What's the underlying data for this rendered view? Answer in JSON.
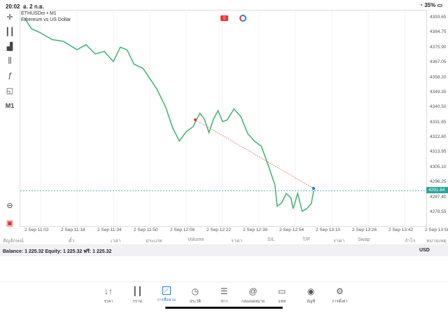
{
  "status": {
    "time": "20:02",
    "date": "อ. 2 ก.ย.",
    "battery": "35%"
  },
  "chart": {
    "symbol": "ETHUSDm • M1",
    "description": "Ethereum vs US Dollar",
    "timeframe": "M1",
    "current_price": "4291.64",
    "colors": {
      "line": "#3cb371",
      "current": "#26a69a",
      "trade_line": "#d9534f"
    }
  },
  "chart_data": {
    "type": "line",
    "y_ticks": [
      "4393.65",
      "4384.75",
      "4375.90",
      "4367.05",
      "4358.20",
      "4349.35",
      "4340.50",
      "4331.65",
      "4322.80",
      "4313.95",
      "4305.10",
      "4296.25",
      "4287.40",
      "4278.55"
    ],
    "x_ticks": [
      "2 Sep 11:02",
      "2 Sep 11:18",
      "2 Sep 11:34",
      "2 Sep 11:50",
      "2 Sep 12:06",
      "2 Sep 12:22",
      "2 Sep 12:38",
      "2 Sep 12:54",
      "2 Sep 13:10",
      "2 Sep 13:26",
      "2 Sep 13:42",
      "2 Sep 13:58"
    ],
    "ylim": [
      4278.55,
      4393.65
    ],
    "series": [
      {
        "points": [
          [
            "10:55",
            4393.6
          ],
          [
            "10:58",
            4387.4
          ],
          [
            "11:02",
            4385.0
          ],
          [
            "11:07",
            4381.0
          ],
          [
            "11:12",
            4380.0
          ],
          [
            "11:18",
            4375.0
          ],
          [
            "11:22",
            4378.0
          ],
          [
            "11:26",
            4372.5
          ],
          [
            "11:30",
            4374.0
          ],
          [
            "11:34",
            4368.0
          ],
          [
            "11:37",
            4376.5
          ],
          [
            "11:40",
            4375.0
          ],
          [
            "11:43",
            4366.5
          ],
          [
            "11:47",
            4364.0
          ],
          [
            "11:50",
            4358.0
          ],
          [
            "11:53",
            4352.0
          ],
          [
            "11:57",
            4341.0
          ],
          [
            "12:00",
            4329.0
          ],
          [
            "12:03",
            4321.0
          ],
          [
            "12:06",
            4326.5
          ],
          [
            "12:09",
            4329.5
          ],
          [
            "12:12",
            4337.5
          ],
          [
            "12:14",
            4334.0
          ],
          [
            "12:16",
            4326.0
          ],
          [
            "12:18",
            4334.0
          ],
          [
            "12:20",
            4339.0
          ],
          [
            "12:22",
            4332.5
          ],
          [
            "12:24",
            4333.5
          ],
          [
            "12:27",
            4340.0
          ],
          [
            "12:30",
            4335.5
          ],
          [
            "12:33",
            4325.5
          ],
          [
            "12:36",
            4321.0
          ],
          [
            "12:39",
            4318.0
          ],
          [
            "12:42",
            4307.0
          ],
          [
            "12:45",
            4295.0
          ],
          [
            "12:46",
            4282.5
          ],
          [
            "12:48",
            4284.5
          ],
          [
            "12:50",
            4290.0
          ],
          [
            "12:52",
            4287.5
          ],
          [
            "12:53",
            4281.0
          ],
          [
            "12:55",
            4290.0
          ],
          [
            "12:57",
            4279.5
          ],
          [
            "12:59",
            4281.0
          ],
          [
            "13:01",
            4284.0
          ],
          [
            "13:02",
            4291.6
          ]
        ]
      }
    ],
    "trade": {
      "from": [
        "12:10",
        4333.6
      ],
      "to": [
        "13:02",
        4293.0
      ]
    }
  },
  "columns": [
    "สัญลักษณ์",
    "ตั๋ว",
    "เวลา",
    "ประเภท",
    "Volume",
    "ราคา",
    "S/L",
    "T/P",
    "ราคา",
    "Swap",
    "กำไร",
    "หมายเหตุ"
  ],
  "balance": {
    "text": "Balance: 1 225.32 Equity: 1 225.32 ฟรี: 1 225.32",
    "currency": "USD"
  },
  "nav": [
    {
      "label": "ราคา",
      "icon": "quotes-icon"
    },
    {
      "label": "กราฟ",
      "icon": "chart-icon"
    },
    {
      "label": "การซื้อขาย",
      "icon": "trade-icon",
      "active": true
    },
    {
      "label": "ประวัติ",
      "icon": "history-icon"
    },
    {
      "label": "ข่าว",
      "icon": "news-icon"
    },
    {
      "label": "กล่องจดหมาย",
      "icon": "mailbox-icon"
    },
    {
      "label": "แชท",
      "icon": "chat-icon"
    },
    {
      "label": "บัญชี",
      "icon": "account-icon"
    },
    {
      "label": "การตั้งค่า",
      "icon": "settings-icon"
    }
  ],
  "toolbar": {
    "timeframe": "M1"
  }
}
